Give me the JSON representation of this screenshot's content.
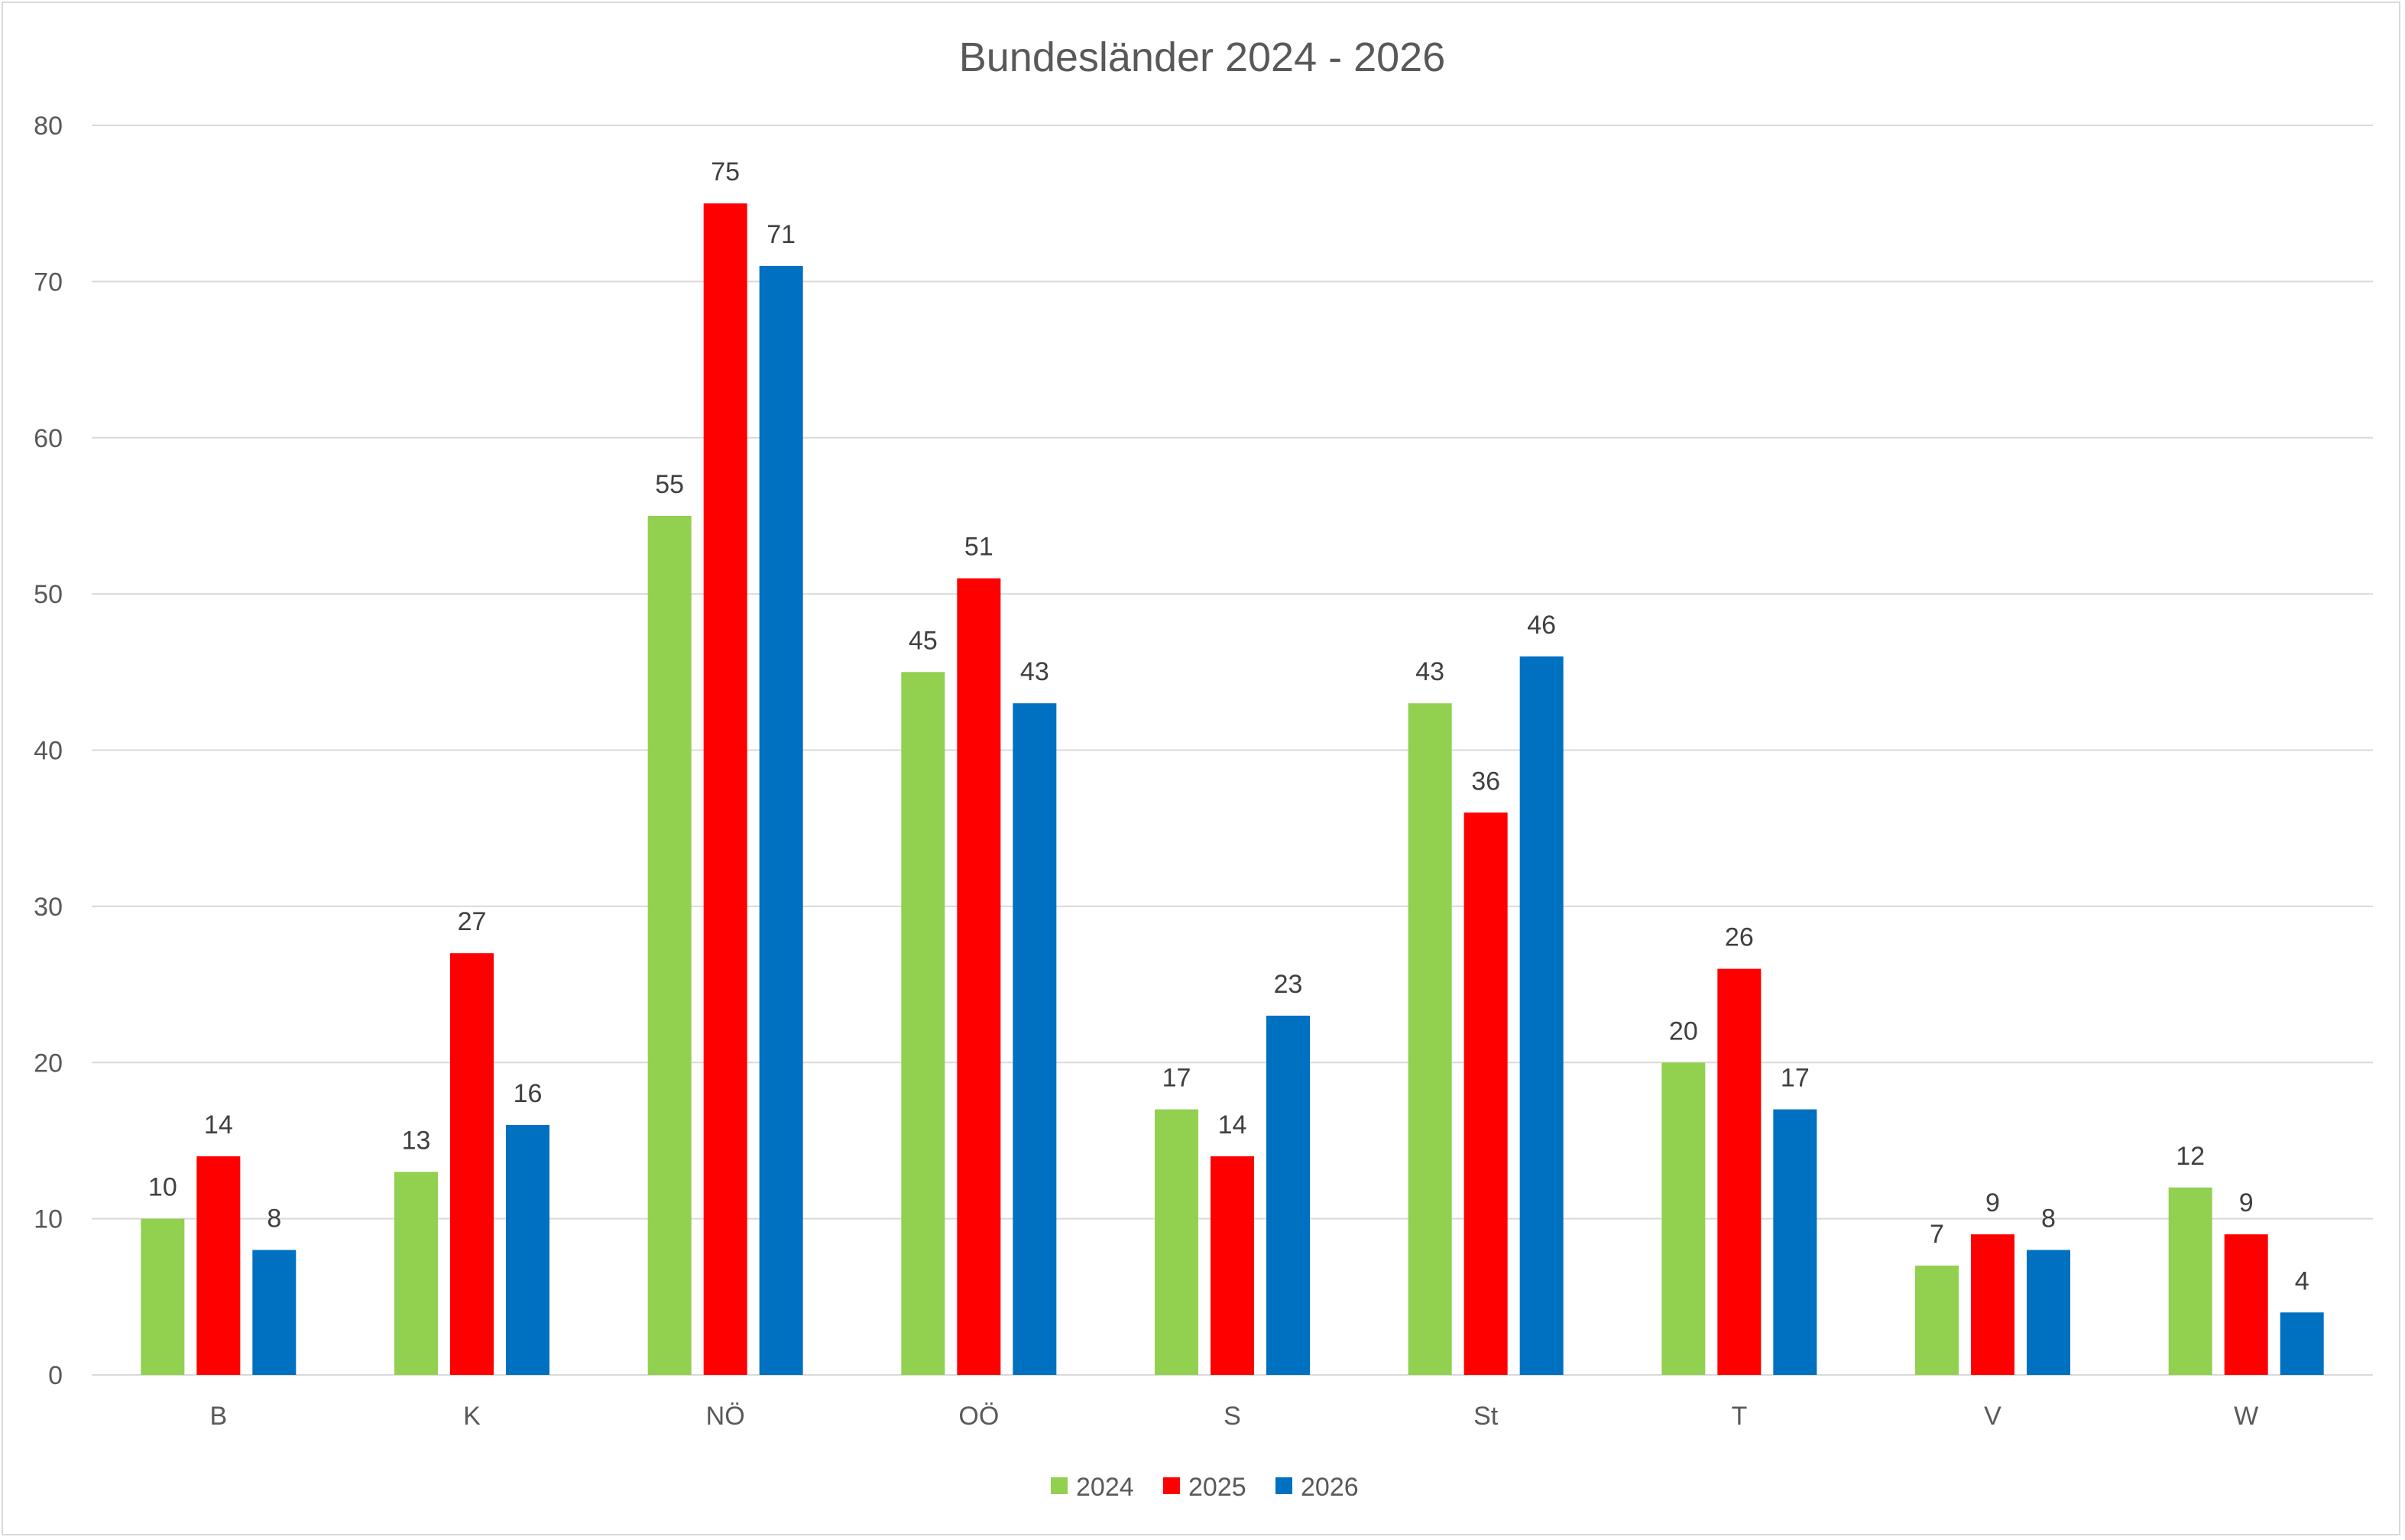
{
  "chart_data": {
    "type": "bar",
    "title": "Bundesländer 2024 - 2026",
    "xlabel": "",
    "ylabel": "",
    "categories": [
      "B",
      "K",
      "NÖ",
      "OÖ",
      "S",
      "St",
      "T",
      "V",
      "W"
    ],
    "series": [
      {
        "name": "2024",
        "color": "#92d050",
        "values": [
          10,
          13,
          55,
          45,
          17,
          43,
          20,
          7,
          12
        ]
      },
      {
        "name": "2025",
        "color": "#ff0000",
        "values": [
          14,
          27,
          75,
          51,
          14,
          36,
          26,
          9,
          9
        ]
      },
      {
        "name": "2026",
        "color": "#0070c0",
        "values": [
          8,
          16,
          71,
          43,
          23,
          46,
          17,
          8,
          4
        ]
      }
    ],
    "ylim": [
      0,
      80
    ],
    "yticks": [
      0,
      10,
      20,
      30,
      40,
      50,
      60,
      70,
      80
    ],
    "grid": true,
    "legend": "bottom-center",
    "data_labels": true
  }
}
